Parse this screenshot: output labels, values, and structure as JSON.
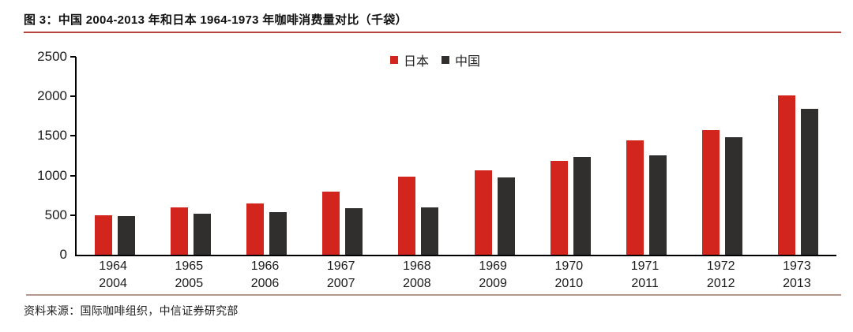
{
  "title": "图 3：中国 2004-2013 年和日本 1964-1973 年咖啡消费量对比（千袋）",
  "source": "资料来源：国际咖啡组织，中信证券研究部",
  "colors": {
    "japan_red": "#d2251d",
    "china_dark": "#302f2e",
    "title_rule": "#b5443c",
    "source_rule": "#b3968c",
    "axis": "#000000"
  },
  "chart_data": {
    "type": "bar",
    "title": "图 3：中国 2004-2013 年和日本 1964-1973 年咖啡消费量对比（千袋）",
    "unit": "千袋",
    "categories_top": [
      "1964",
      "1965",
      "1966",
      "1967",
      "1968",
      "1969",
      "1970",
      "1971",
      "1972",
      "1973"
    ],
    "categories_bottom": [
      "2004",
      "2005",
      "2006",
      "2007",
      "2008",
      "2009",
      "2010",
      "2011",
      "2012",
      "2013"
    ],
    "series": [
      {
        "key": "japan",
        "name": "日本",
        "color": "#d2251d",
        "values": [
          500,
          600,
          650,
          800,
          990,
          1070,
          1190,
          1440,
          1570,
          2010
        ]
      },
      {
        "key": "china",
        "name": "中国",
        "color": "#302f2e",
        "values": [
          490,
          520,
          540,
          585,
          600,
          980,
          1240,
          1260,
          1480,
          1840
        ]
      }
    ],
    "ylim": [
      0,
      2500
    ],
    "yticks": [
      0,
      500,
      1000,
      1500,
      2000,
      2500
    ],
    "grid": false,
    "legend_position": "top-center"
  }
}
